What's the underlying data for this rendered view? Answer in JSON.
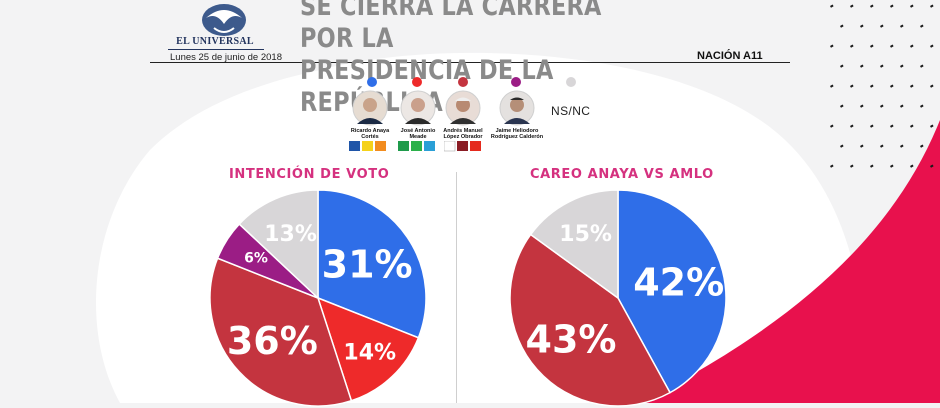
{
  "header": {
    "logo_text": "EL UNIVERSAL",
    "date": "Lunes 25 de junio de 2018",
    "headline_line1": "SE CIERRA LA CARRERA POR LA",
    "headline_line2": "PRESIDENCIA DE LA REPÚBLICA",
    "section": "NACIÓN A11"
  },
  "legend": {
    "candidates": [
      {
        "name_line1": "Ricardo Anaya",
        "name_line2": "Cortés",
        "color": "#2f6ee8"
      },
      {
        "name_line1": "José Antonio",
        "name_line2": "Meade",
        "color": "#ee2a2a"
      },
      {
        "name_line1": "Andrés Manuel",
        "name_line2": "López Obrador",
        "color": "#c4343f"
      },
      {
        "name_line1": "Jaime Heliodoro",
        "name_line2": "Rodríguez Calderón",
        "color": "#9b1d85"
      }
    ],
    "ns_nc": {
      "label": "NS/NC",
      "color": "#d8d6d8"
    }
  },
  "chart_data": [
    {
      "type": "pie",
      "title": "INTENCIÓN DE VOTO",
      "slices": [
        {
          "value": 31,
          "label": "31%",
          "color": "#2f6ee8"
        },
        {
          "value": 14,
          "label": "14%",
          "color": "#ee2a2a"
        },
        {
          "value": 36,
          "label": "36%",
          "color": "#c4343f"
        },
        {
          "value": 6,
          "label": "6%",
          "color": "#9b1d85"
        },
        {
          "value": 13,
          "label": "13%",
          "color": "#d8d6d8"
        }
      ]
    },
    {
      "type": "pie",
      "title": "CAREO ANAYA VS AMLO",
      "slices": [
        {
          "value": 42,
          "label": "42%",
          "color": "#2f6ee8"
        },
        {
          "value": 43,
          "label": "43%",
          "color": "#c4343f"
        },
        {
          "value": 15,
          "label": "15%",
          "color": "#d8d6d8"
        }
      ]
    }
  ]
}
